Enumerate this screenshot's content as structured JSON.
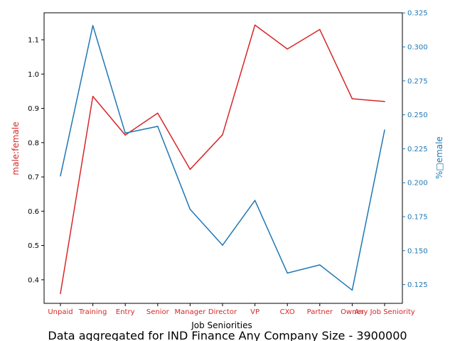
{
  "chart_data": {
    "type": "line",
    "title": "",
    "suptitle": "Data aggregated for IND Finance Any Company Size - 3900000",
    "xlabel": "Job Seniorities",
    "categories": [
      "Unpaid",
      "Training",
      "Entry",
      "Senior",
      "Manager",
      "Director",
      "VP",
      "CXO",
      "Partner",
      "Owner",
      "Any Job Seniority"
    ],
    "grid": false,
    "series": [
      {
        "name": "male:female",
        "axis": "left",
        "color": "#d62728",
        "values": [
          0.36,
          0.935,
          0.822,
          0.886,
          0.722,
          0.823,
          1.143,
          1.073,
          1.13,
          0.928,
          0.92
        ]
      },
      {
        "name": "%female",
        "axis": "right",
        "color": "#1f77b4",
        "values": [
          0.205,
          0.3157,
          0.2365,
          0.2415,
          0.1804,
          0.154,
          0.187,
          0.1335,
          0.1395,
          0.1209,
          0.2388
        ]
      }
    ],
    "y_left": {
      "label": "male:female",
      "color": "#d62728",
      "ylim": [
        0.3313,
        1.1787
      ],
      "ticks": [
        "0.4",
        "0.5",
        "0.6",
        "0.7",
        "0.8",
        "0.9",
        "1.0",
        "1.1"
      ]
    },
    "y_right": {
      "label": "%□emale",
      "color": "#1f77b4",
      "ylim": [
        0.1112,
        0.3251
      ],
      "ticks": [
        "0.125",
        "0.150",
        "0.175",
        "0.200",
        "0.225",
        "0.250",
        "0.275",
        "0.300",
        "0.325"
      ]
    },
    "tick_label_color": "#d62728"
  }
}
